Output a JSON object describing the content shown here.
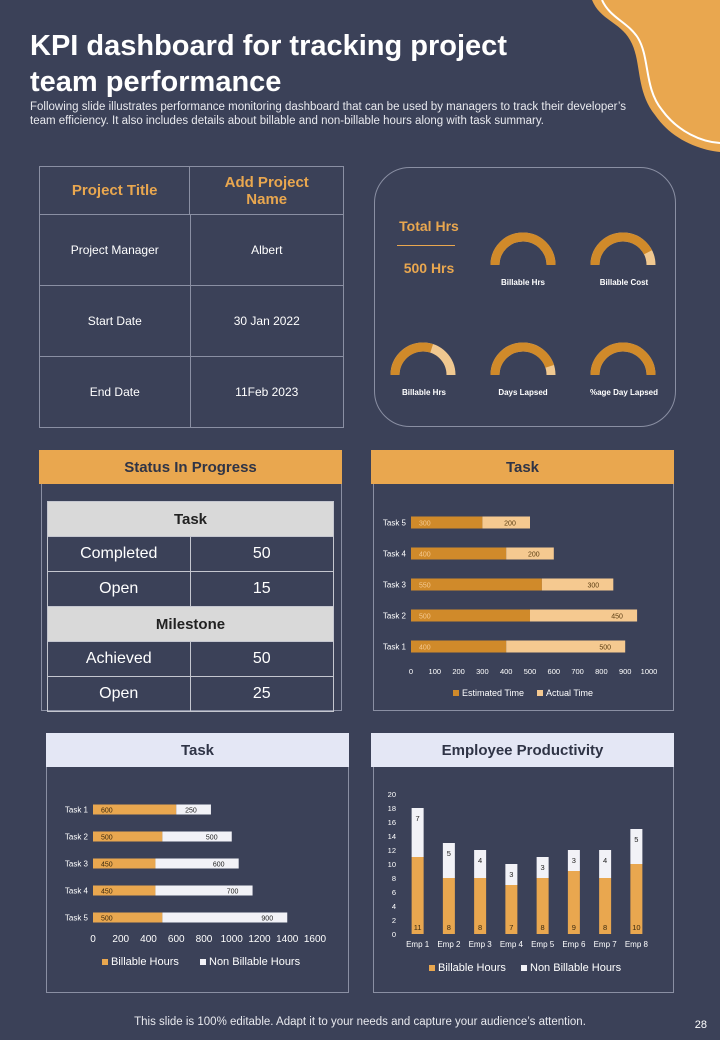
{
  "title": "KPI dashboard for tracking project team performance",
  "subtitle": "Following slide illustrates performance monitoring dashboard that can be used by managers to track their developer’s team efficiency. It also includes details about billable and non-billable hours along with task summary.",
  "project": {
    "title_label": "Project Title",
    "title_value": "Add Project Name",
    "rows": [
      {
        "label": "Project Manager",
        "value": "Albert"
      },
      {
        "label": "Start Date",
        "value": "30 Jan 2022"
      },
      {
        "label": "End Date",
        "value": "11Feb 2023"
      }
    ]
  },
  "hours": {
    "total_label": "Total Hrs",
    "total_value": "500 Hrs",
    "gauges": [
      {
        "label": "Billable Hrs",
        "level": 1.0
      },
      {
        "label": "Billable Cost",
        "level": 0.85
      },
      {
        "label": "Billable Hrs",
        "level": 0.6
      },
      {
        "label": "Days Lapsed",
        "level": 0.9
      },
      {
        "label": "%age Day Lapsed",
        "level": 1.0
      }
    ]
  },
  "status": {
    "header": "Status In Progress",
    "task_label": "Task",
    "milestone_label": "Milestone",
    "task_rows": [
      {
        "label": "Completed",
        "value": "50"
      },
      {
        "label": "Open",
        "value": "15"
      }
    ],
    "milestone_rows": [
      {
        "label": "Achieved",
        "value": "50"
      },
      {
        "label": "Open",
        "value": "25"
      }
    ]
  },
  "task_chart_header": "Task",
  "task2_header": "Task",
  "productivity_header": "Employee Productivity",
  "footer": "This slide is 100% editable. Adapt it to your needs and capture your audience’s attention.",
  "page_number": "28",
  "colors": {
    "background": "#3b4158",
    "accent": "#e9a74f",
    "bar_dark": "#d08a2a",
    "bar_light": "#f5c990",
    "bar_white": "#f2f2f7"
  },
  "chart_data": [
    {
      "type": "bar",
      "orientation": "horizontal",
      "stacked": true,
      "categories": [
        "Task 1",
        "Task 2",
        "Task 3",
        "Task 4",
        "Task 5"
      ],
      "series": [
        {
          "name": "Estimated Time",
          "values": [
            400,
            500,
            550,
            400,
            300
          ]
        },
        {
          "name": "Actual Time",
          "values": [
            500,
            450,
            300,
            200,
            200
          ]
        }
      ],
      "xlim": [
        0,
        1000
      ],
      "ticks": [
        "0",
        "100",
        "200",
        "300",
        "400",
        "500",
        "600",
        "700",
        "800",
        "900",
        "1000"
      ],
      "legend": "bottom"
    },
    {
      "type": "bar",
      "orientation": "horizontal",
      "stacked": true,
      "categories": [
        "Task 1",
        "Task 2",
        "Task 3",
        "Task 4",
        "Task 5"
      ],
      "series": [
        {
          "name": "Billable Hours",
          "values": [
            600,
            500,
            450,
            450,
            500
          ]
        },
        {
          "name": "Non Billable Hours",
          "values": [
            250,
            500,
            600,
            700,
            900
          ]
        }
      ],
      "xlim": [
        0,
        1600
      ],
      "ticks": [
        "0",
        "200",
        "400",
        "600",
        "800",
        "1000",
        "1200",
        "1400",
        "1600"
      ],
      "legend": "bottom"
    },
    {
      "type": "bar",
      "orientation": "vertical",
      "stacked": true,
      "categories": [
        "Emp 1",
        "Emp 2",
        "Emp 3",
        "Emp 4",
        "Emp 5",
        "Emp 6",
        "Emp 7",
        "Emp 8"
      ],
      "series": [
        {
          "name": "Billable Hours",
          "values": [
            11,
            8,
            8,
            7,
            8,
            9,
            8,
            10
          ]
        },
        {
          "name": "Non Billable Hours",
          "values": [
            7,
            5,
            4,
            3,
            3,
            3,
            4,
            5
          ]
        }
      ],
      "ylim": [
        0,
        20
      ],
      "ticks": [
        "0",
        "2",
        "4",
        "6",
        "8",
        "10",
        "12",
        "14",
        "16",
        "18",
        "20"
      ],
      "legend": "bottom"
    }
  ]
}
